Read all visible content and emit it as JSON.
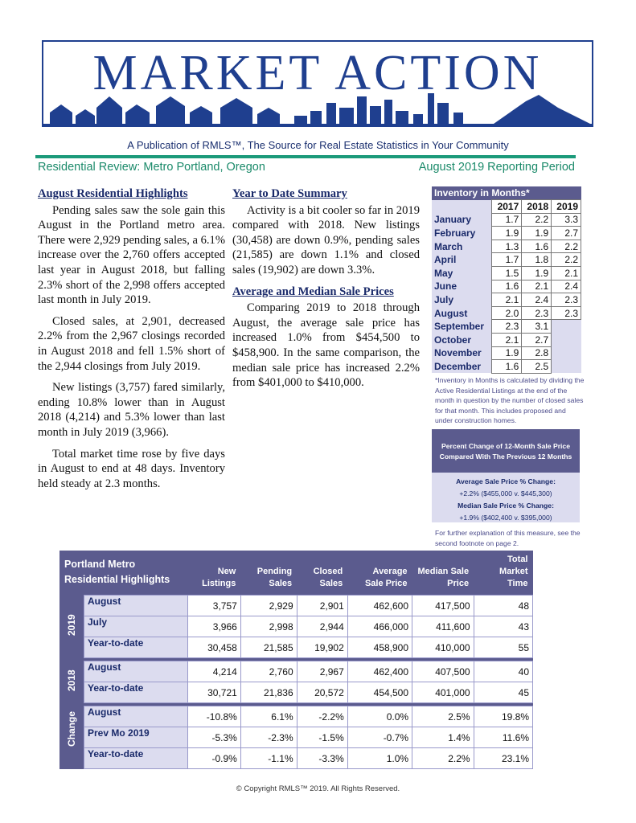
{
  "header": {
    "title": "MARKET ACTION",
    "publication": "A Publication of RMLS™, The Source for Real Estate Statistics in Your Community",
    "region": "Residential Review: Metro Portland, Oregon",
    "period": "August 2019 Reporting Period"
  },
  "highlights": {
    "heading": "August Residential Highlights",
    "paragraphs": [
      "Pending sales saw the sole gain this August in the Portland metro area. There were 2,929 pending sales, a 6.1% increase over the 2,760 offers accepted last year in August 2018, but falling 2.3% short of the 2,998 offers accepted last month in July 2019.",
      "Closed sales, at 2,901, decreased 2.2% from the 2,967 closings recorded in August 2018 and fell 1.5% short of the 2,944 closings from July 2019.",
      "New listings (3,757) fared similarly, ending 10.8% lower than in August 2018 (4,214) and 5.3% lower than last month in July 2019 (3,966).",
      "Total market time rose by five days in August to end at 48 days. Inventory held steady at 2.3 months."
    ]
  },
  "ytd": {
    "heading": "Year to Date Summary",
    "paragraphs": [
      "Activity is a bit cooler so far in 2019 compared with 2018. New listings (30,458) are down 0.9%, pending sales (21,585) are down 1.1% and closed sales (19,902) are down 3.3%."
    ]
  },
  "prices": {
    "heading": "Average and Median Sale Prices",
    "paragraphs": [
      "Comparing 2019 to 2018 through August, the average sale price has increased 1.0% from $454,500 to $458,900. In the same comparison, the median sale price has increased 2.2% from $401,000 to $410,000."
    ]
  },
  "inventory": {
    "title": "Inventory in Months*",
    "columns": [
      "2017",
      "2018",
      "2019"
    ],
    "rows": [
      {
        "month": "January",
        "values": [
          "1.7",
          "2.2",
          "3.3"
        ]
      },
      {
        "month": "February",
        "values": [
          "1.9",
          "1.9",
          "2.7"
        ]
      },
      {
        "month": "March",
        "values": [
          "1.3",
          "1.6",
          "2.2"
        ]
      },
      {
        "month": "April",
        "values": [
          "1.7",
          "1.8",
          "2.2"
        ]
      },
      {
        "month": "May",
        "values": [
          "1.5",
          "1.9",
          "2.1"
        ]
      },
      {
        "month": "June",
        "values": [
          "1.6",
          "2.1",
          "2.4"
        ]
      },
      {
        "month": "July",
        "values": [
          "2.1",
          "2.4",
          "2.3"
        ]
      },
      {
        "month": "August",
        "values": [
          "2.0",
          "2.3",
          "2.3"
        ]
      },
      {
        "month": "September",
        "values": [
          "2.3",
          "3.1",
          null
        ]
      },
      {
        "month": "October",
        "values": [
          "2.1",
          "2.7",
          null
        ]
      },
      {
        "month": "November",
        "values": [
          "1.9",
          "2.8",
          null
        ]
      },
      {
        "month": "December",
        "values": [
          "1.6",
          "2.5",
          null
        ]
      }
    ],
    "note": "*Inventory in Months is calculated by dividing the Active Residential Listings at the end of the month in question by the number of closed sales for that month. This includes proposed and under construction homes."
  },
  "percent_change": {
    "title": "Percent Change of 12-Month Sale Price Compared With The Previous 12 Months",
    "avg_label": "Average Sale Price % Change:",
    "avg_value": "+2.2% ($455,000 v. $445,300)",
    "median_label": "Median Sale Price % Change:",
    "median_value": "+1.9% ($402,400 v. $395,000)",
    "footnote": "For further explanation of this measure, see the second footnote on page 2."
  },
  "table": {
    "title": "Portland Metro Residential Highlights",
    "columns": [
      "New Listings",
      "Pending Sales",
      "Closed Sales",
      "Average Sale Price",
      "Median Sale Price",
      "Total Market Time"
    ],
    "groups": [
      {
        "label": "2019",
        "rows": [
          {
            "label": "August",
            "cells": [
              "3,757",
              "2,929",
              "2,901",
              "462,600",
              "417,500",
              "48"
            ]
          },
          {
            "label": "July",
            "cells": [
              "3,966",
              "2,998",
              "2,944",
              "466,000",
              "411,600",
              "43"
            ]
          },
          {
            "label": "Year-to-date",
            "cells": [
              "30,458",
              "21,585",
              "19,902",
              "458,900",
              "410,000",
              "55"
            ]
          }
        ]
      },
      {
        "label": "2018",
        "rows": [
          {
            "label": "August",
            "cells": [
              "4,214",
              "2,760",
              "2,967",
              "462,400",
              "407,500",
              "40"
            ]
          },
          {
            "label": "Year-to-date",
            "cells": [
              "30,721",
              "21,836",
              "20,572",
              "454,500",
              "401,000",
              "45"
            ]
          }
        ]
      },
      {
        "label": "Change",
        "rows": [
          {
            "label": "August",
            "cells": [
              "-10.8%",
              "6.1%",
              "-2.2%",
              "0.0%",
              "2.5%",
              "19.8%"
            ]
          },
          {
            "label": "Prev Mo 2019",
            "cells": [
              "-5.3%",
              "-2.3%",
              "-1.5%",
              "-0.7%",
              "1.4%",
              "11.6%"
            ]
          },
          {
            "label": "Year-to-date",
            "cells": [
              "-0.9%",
              "-1.1%",
              "-3.3%",
              "1.0%",
              "2.2%",
              "23.1%"
            ]
          }
        ]
      }
    ]
  },
  "footer": "© Copyright RMLS™ 2019. All Rights Reserved."
}
